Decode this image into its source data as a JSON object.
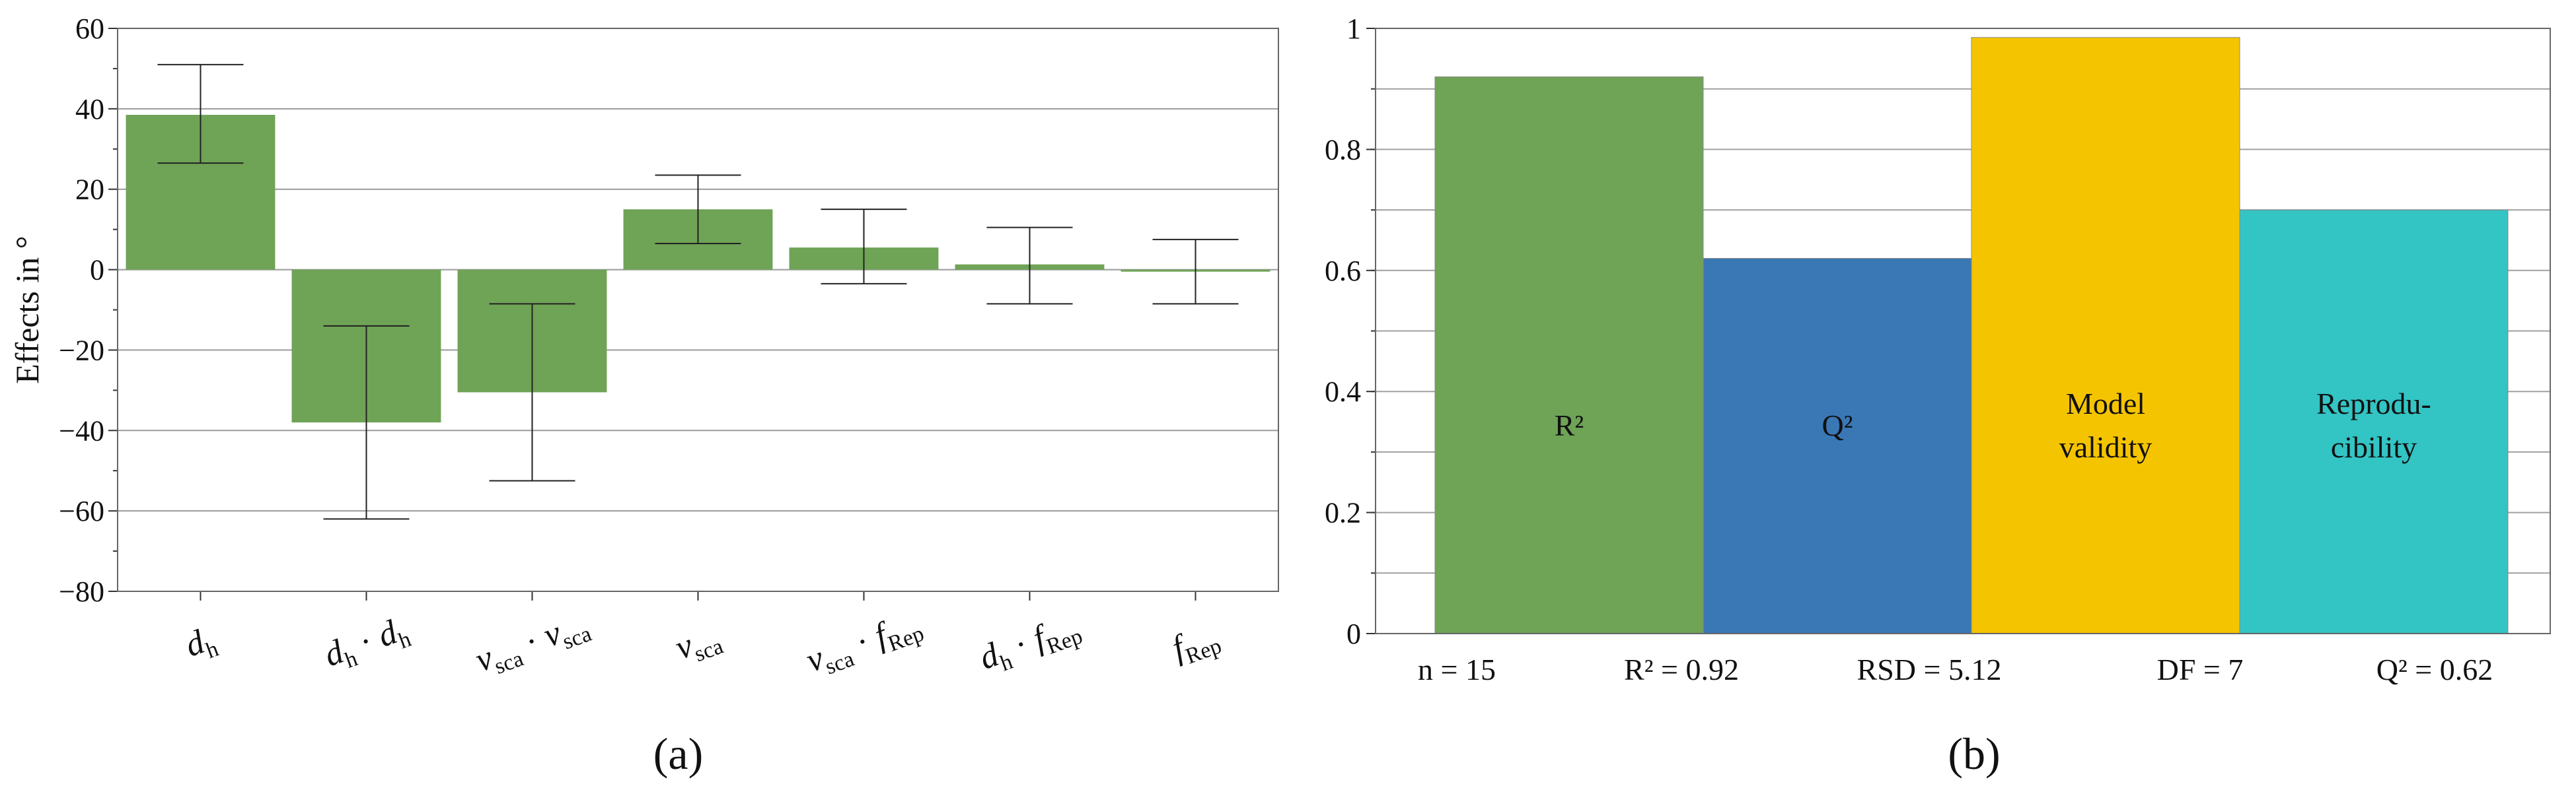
{
  "chart_data": [
    {
      "type": "bar",
      "panel_label": "(a)",
      "ylabel": "Effects in °",
      "ylim": [
        -80,
        60
      ],
      "yticks": [
        "60",
        "40",
        "20",
        "0",
        "−20",
        "−40",
        "−60",
        "−80"
      ],
      "ytick_values": [
        60,
        40,
        20,
        0,
        -20,
        -40,
        -60,
        -80
      ],
      "grid": true,
      "bar_color": "#6fa356",
      "categories": [
        {
          "parts": [
            [
              "d",
              "it",
              ""
            ],
            [
              "h",
              "sub",
              ""
            ]
          ]
        },
        {
          "parts": [
            [
              "d",
              "it",
              ""
            ],
            [
              "h",
              "sub",
              ""
            ],
            [
              " · ",
              "n",
              ""
            ],
            [
              "d",
              "it",
              ""
            ],
            [
              "h",
              "sub",
              ""
            ]
          ]
        },
        {
          "parts": [
            [
              "ν",
              "it",
              ""
            ],
            [
              "sca",
              "sub",
              ""
            ],
            [
              " · ",
              "n",
              ""
            ],
            [
              "ν",
              "it",
              ""
            ],
            [
              "sca",
              "sub",
              ""
            ]
          ]
        },
        {
          "parts": [
            [
              "ν",
              "it",
              ""
            ],
            [
              "sca",
              "sub",
              ""
            ]
          ]
        },
        {
          "parts": [
            [
              "ν",
              "it",
              ""
            ],
            [
              "sca",
              "sub",
              ""
            ],
            [
              " · ",
              "n",
              ""
            ],
            [
              "f",
              "it",
              ""
            ],
            [
              "Rep",
              "sub",
              ""
            ]
          ]
        },
        {
          "parts": [
            [
              "d",
              "it",
              ""
            ],
            [
              "h",
              "sub",
              ""
            ],
            [
              " · ",
              "n",
              ""
            ],
            [
              "f",
              "it",
              ""
            ],
            [
              "Rep",
              "sub",
              ""
            ]
          ]
        },
        {
          "parts": [
            [
              "f",
              "it",
              ""
            ],
            [
              "Rep",
              "sub",
              ""
            ]
          ]
        }
      ],
      "values": [
        38.5,
        -38,
        -30.5,
        15,
        5.5,
        1.3,
        -0.5
      ],
      "error_low": [
        26.5,
        -62,
        -52.5,
        6.5,
        -3.5,
        -8.5,
        -8.5
      ],
      "error_high": [
        51,
        -14,
        -8.5,
        23.5,
        15,
        10.5,
        7.5
      ]
    },
    {
      "type": "bar",
      "panel_label": "(b)",
      "ylim": [
        0,
        1
      ],
      "yticks": [
        "1",
        "0.8",
        "0.6",
        "0.4",
        "0.2",
        "0"
      ],
      "ytick_values": [
        1,
        0.8,
        0.6,
        0.4,
        0.2,
        0
      ],
      "grid": true,
      "bars": [
        {
          "label_lines": [
            "R²"
          ],
          "value": 0.92,
          "color": "#6fa356"
        },
        {
          "label_lines": [
            "Q²"
          ],
          "value": 0.62,
          "color": "#3a77b5"
        },
        {
          "label_lines": [
            "Model",
            "validity"
          ],
          "value": 0.985,
          "color": "#f5c400"
        },
        {
          "label_lines": [
            "Reprodu-",
            "cibility"
          ],
          "value": 0.7,
          "color": "#33c4c4"
        }
      ],
      "stats": [
        "n = 15",
        "R² = 0.92",
        "RSD = 5.12",
        "DF = 7",
        "Q² = 0.62"
      ]
    }
  ]
}
